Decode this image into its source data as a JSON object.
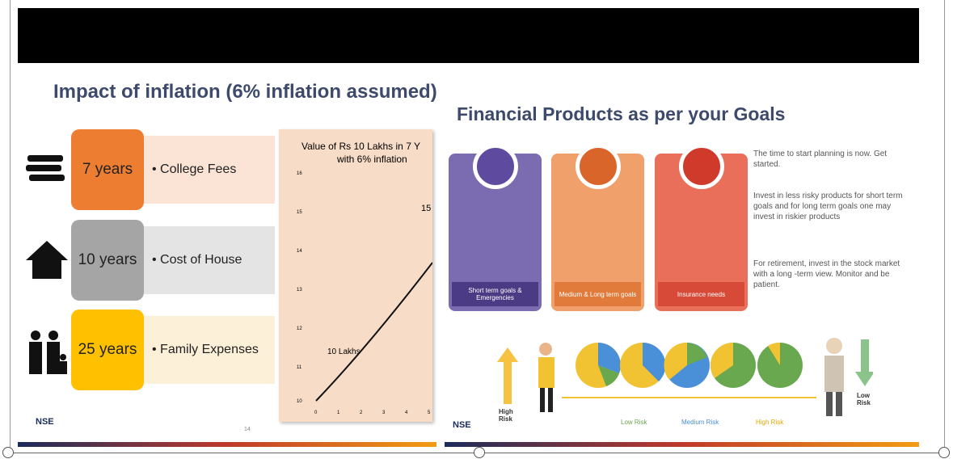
{
  "left_slide": {
    "title": "Impact of inflation (6% inflation assumed)",
    "rows": [
      {
        "years": "7 years",
        "item": "• College Fees"
      },
      {
        "years": "10 years",
        "item": "• Cost of House"
      },
      {
        "years": "25 years",
        "item": "• Family Expenses"
      }
    ],
    "chart": {
      "title": [
        "Value of Rs 10 Lakhs in 7 Y",
        "with 6% inflation"
      ],
      "annotations": [
        "15",
        "10 Lakhs"
      ],
      "yticks": [
        "16",
        "15",
        "14",
        "13",
        "12",
        "11",
        "10"
      ],
      "xticks": [
        "0",
        "1",
        "2",
        "3",
        "4",
        "5"
      ]
    },
    "logo": "NSE",
    "page": "14"
  },
  "right_slide": {
    "title": "Financial Products as per your Goals",
    "cards": [
      {
        "label": "Short term goals & Emergencies"
      },
      {
        "label": "Medium & Long term goals"
      },
      {
        "label": "Insurance needs"
      }
    ],
    "bullets": [
      "The time to start planning is now. Get started.",
      "Invest in less risky products for short term goals and for long term goals one may invest in riskier products",
      "For retirement, invest in the stock market with a long -term view. Monitor and be patient."
    ],
    "high_risk": "High Risk",
    "low_risk": "Low Risk",
    "legend": [
      "Low Risk",
      "Medium Risk",
      "High Risk"
    ],
    "logo": "NSE"
  }
}
